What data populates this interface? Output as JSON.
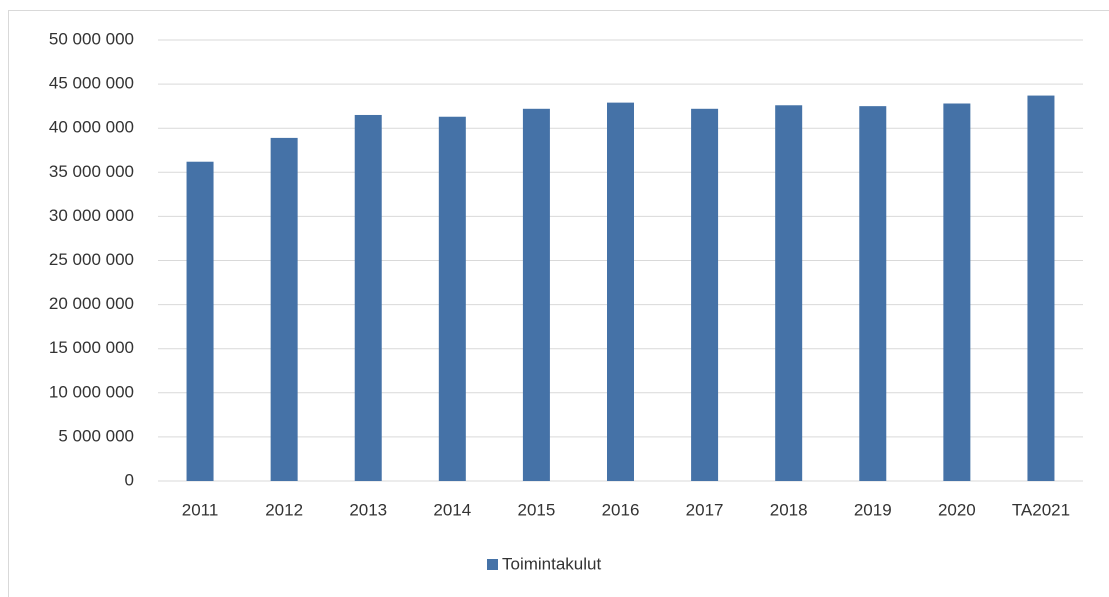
{
  "chart_data": {
    "type": "bar",
    "categories": [
      "2011",
      "2012",
      "2013",
      "2014",
      "2015",
      "2016",
      "2017",
      "2018",
      "2019",
      "2020",
      "TA2021"
    ],
    "series": [
      {
        "name": "Toimintakulut",
        "color": "#4572a7",
        "values": [
          36200000,
          38900000,
          41500000,
          41300000,
          42200000,
          42900000,
          42200000,
          42600000,
          42500000,
          42800000,
          43700000
        ]
      }
    ],
    "ylim": [
      0,
      50000000
    ],
    "yticks": [
      0,
      {
        "value": 5000000,
        "label": "5 000 000"
      },
      {
        "value": 10000000,
        "label": "10 000 000"
      },
      {
        "value": 15000000,
        "label": "15 000 000"
      },
      {
        "value": 20000000,
        "label": "20 000 000"
      },
      {
        "value": 25000000,
        "label": "25 000 000"
      },
      {
        "value": 30000000,
        "label": "30 000 000"
      },
      {
        "value": 35000000,
        "label": "35 000 000"
      },
      {
        "value": 40000000,
        "label": "40 000 000"
      },
      {
        "value": 45000000,
        "label": "45 000 000"
      },
      {
        "value": 50000000,
        "label": "50 000 000"
      }
    ],
    "grid": true,
    "legend": "bottom"
  }
}
